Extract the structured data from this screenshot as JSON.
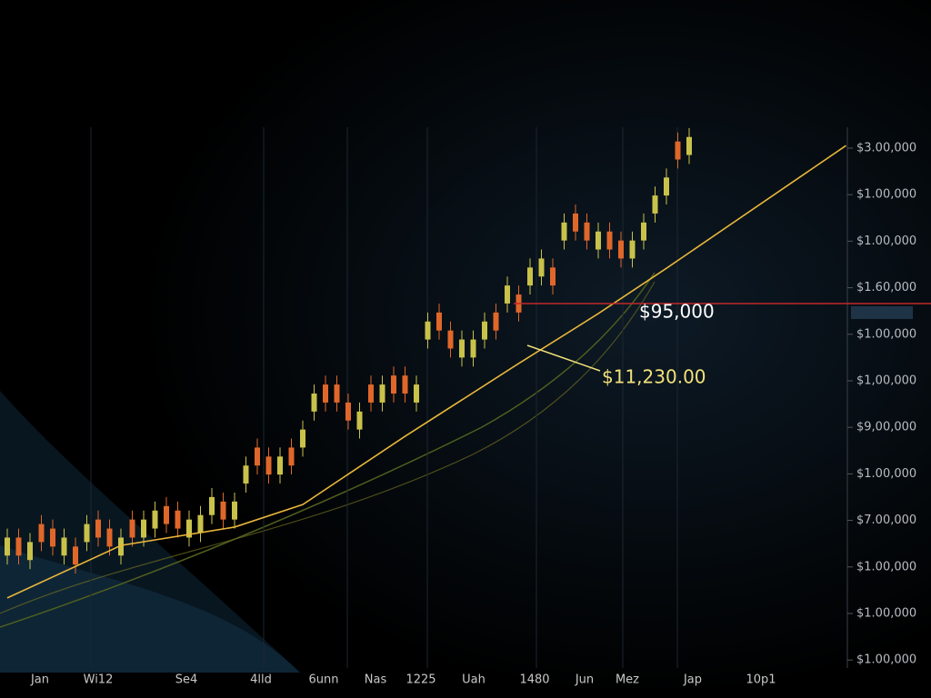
{
  "chart_data": {
    "type": "candlestick",
    "ylim": [
      0,
      142000
    ],
    "y_axis_labels": [
      "$3.00,000",
      "$1.00,000",
      "$1.00,000",
      "$1.60,000",
      "$1.00,000",
      "$1,00,000",
      "$9,00,000",
      "$1.00,000",
      "$7.00,000",
      "$1.00,000",
      "$1.00,000",
      "$1.00,000"
    ],
    "x_axis_labels": [
      "Jan",
      "Wi12",
      "Se4",
      "4lld",
      "6unn",
      "Nas",
      "1225",
      "Uah",
      "1480",
      "Jun",
      "Mez",
      "Jap",
      "10p1"
    ],
    "up_color": "#c9c24a",
    "down_color": "#e0672a",
    "open": [
      27800,
      32600,
      26600,
      36200,
      35000,
      27800,
      30200,
      31400,
      37400,
      35000,
      27800,
      37400,
      32600,
      35000,
      41000,
      39800,
      32600,
      33800,
      38600,
      42200,
      37400,
      47000,
      56600,
      54200,
      49400,
      56600,
      56600,
      66200,
      73400,
      73400,
      68600,
      61400,
      73400,
      68600,
      75800,
      75800,
      68600,
      85400,
      92600,
      87800,
      80600,
      80600,
      85400,
      92600,
      95000,
      97400,
      99800,
      102200,
      104600,
      111800,
      119000,
      116600,
      109400,
      114200,
      111800,
      107000,
      111800,
      119000,
      123800,
      138200,
      134600
    ],
    "high": [
      35000,
      35000,
      33800,
      38600,
      37400,
      35000,
      32600,
      38600,
      39800,
      37400,
      35000,
      39800,
      39800,
      42200,
      43400,
      42200,
      39800,
      41000,
      45800,
      44600,
      44600,
      54200,
      59000,
      56600,
      56600,
      59000,
      63800,
      73400,
      75800,
      75800,
      71000,
      68600,
      75800,
      75800,
      78200,
      78200,
      75800,
      92600,
      95000,
      90200,
      87800,
      87800,
      92600,
      95000,
      102200,
      99800,
      107000,
      109400,
      107000,
      119000,
      121400,
      119000,
      116600,
      116600,
      114200,
      114200,
      119000,
      126200,
      131000,
      140600,
      141800
    ],
    "low": [
      25400,
      25400,
      24200,
      29000,
      27800,
      25400,
      23000,
      29000,
      30200,
      27800,
      25400,
      30200,
      30200,
      32600,
      33800,
      32600,
      30200,
      31400,
      36200,
      35000,
      35000,
      44600,
      49400,
      47000,
      47000,
      49400,
      54200,
      63800,
      66200,
      66200,
      61400,
      59000,
      66200,
      66200,
      68600,
      68600,
      66200,
      83000,
      85400,
      80600,
      78200,
      78200,
      83000,
      85400,
      92600,
      90200,
      97400,
      99800,
      97400,
      109400,
      111800,
      109400,
      107000,
      107000,
      104600,
      104600,
      109400,
      116600,
      121400,
      131000,
      132200
    ],
    "close": [
      32600,
      27800,
      31400,
      31400,
      30200,
      32600,
      25400,
      36200,
      32600,
      30200,
      32600,
      32600,
      37400,
      39800,
      36200,
      35000,
      37400,
      38600,
      43400,
      37400,
      42200,
      51800,
      51800,
      49400,
      54200,
      51800,
      61400,
      71000,
      68600,
      68600,
      63800,
      66200,
      68600,
      73400,
      71000,
      71000,
      73400,
      90200,
      87800,
      83000,
      85400,
      85400,
      90200,
      87800,
      99800,
      92600,
      104600,
      107000,
      99800,
      116600,
      114200,
      111800,
      114200,
      109400,
      107000,
      111800,
      116600,
      123800,
      128600,
      133400,
      139400
    ],
    "moving_average": {
      "color": "#e8b63a",
      "x": [
        0,
        10,
        20,
        26,
        35,
        45,
        52,
        58,
        73.8
      ],
      "values": [
        16500,
        30500,
        35400,
        41400,
        59600,
        79000,
        92300,
        104400,
        137100
      ]
    },
    "level_line": {
      "value": 95000,
      "label": "$95,000",
      "color": "#c0282a"
    },
    "annotation": {
      "label": "$11,230.00",
      "color": "#f2e27a"
    }
  }
}
